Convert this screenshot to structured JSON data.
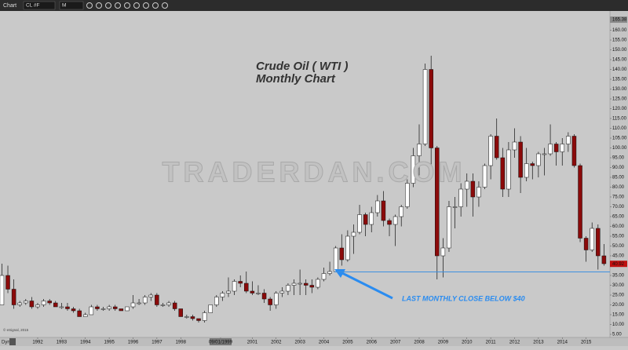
{
  "chart_data": {
    "type": "candlestick",
    "window_title": "Chart",
    "symbol": "CL #F",
    "interval": "M",
    "title": "Crude Oil ( WTI )",
    "subtitle": "Monthly Chart",
    "watermark": "TRADERDAN.COM",
    "annotation": "LAST MONTHLY CLOSE BELOW $40",
    "copyright": "© eSignal, 2015",
    "corner_label": "Dyn",
    "reference_line": 36.8,
    "reference_color": "#3d8fe0",
    "up_color": "#ffffff",
    "down_color": "#8b0a0a",
    "price_tags": [
      165.38,
      40.92
    ],
    "xlim": [
      1990.42,
      2016.0
    ],
    "ylim": [
      3.4,
      169.8
    ],
    "x": [
      1990.5,
      1990.75,
      1991,
      1991.25,
      1991.5,
      1991.75,
      1992,
      1992.25,
      1992.5,
      1992.75,
      1993,
      1993.25,
      1993.5,
      1993.75,
      1994,
      1994.25,
      1994.5,
      1994.75,
      1995,
      1995.25,
      1995.5,
      1995.75,
      1996,
      1996.25,
      1996.5,
      1996.75,
      1997,
      1997.25,
      1997.5,
      1997.75,
      1998,
      1998.25,
      1998.5,
      1998.75,
      1999,
      1999.25,
      1999.5,
      1999.75,
      2000,
      2000.25,
      2000.5,
      2000.75,
      2001,
      2001.25,
      2001.5,
      2001.75,
      2002,
      2002.25,
      2002.5,
      2002.75,
      2003,
      2003.25,
      2003.5,
      2003.75,
      2004,
      2004.25,
      2004.5,
      2004.75,
      2005,
      2005.25,
      2005.5,
      2005.75,
      2006,
      2006.25,
      2006.5,
      2006.75,
      2007,
      2007.25,
      2007.5,
      2007.75,
      2008,
      2008.25,
      2008.5,
      2008.75,
      2009,
      2009.25,
      2009.5,
      2009.75,
      2010,
      2010.25,
      2010.5,
      2010.75,
      2011,
      2011.25,
      2011.5,
      2011.75,
      2012,
      2012.25,
      2012.5,
      2012.75,
      2013,
      2013.25,
      2013.5,
      2013.75,
      2014,
      2014.25,
      2014.5,
      2014.75,
      2015,
      2015.25,
      2015.5,
      2015.75
    ],
    "open": [
      20,
      35,
      28,
      20,
      21,
      22,
      19,
      20,
      22,
      21,
      19,
      19,
      18,
      17,
      14,
      15,
      19,
      18,
      18,
      19,
      18,
      17,
      19,
      21,
      21,
      24,
      25,
      20,
      20,
      21,
      18,
      14,
      14,
      13,
      12,
      16,
      20,
      24,
      26,
      27,
      32,
      31,
      27,
      26,
      26,
      23,
      20,
      26,
      27,
      30,
      31,
      31,
      30,
      29,
      33,
      36,
      37,
      49,
      43,
      55,
      57,
      66,
      61,
      67,
      73,
      63,
      61,
      65,
      70,
      82,
      96,
      102,
      140,
      100,
      45,
      49,
      70,
      70,
      79,
      83,
      75,
      80,
      91,
      106,
      95,
      79,
      99,
      103,
      85,
      92,
      91,
      97,
      97,
      102,
      98,
      102,
      106,
      91,
      54,
      48,
      59,
      45
    ],
    "high": [
      41,
      40,
      33,
      22,
      23,
      24,
      21,
      23,
      23,
      22,
      21,
      21,
      19,
      18,
      16,
      20,
      20,
      19,
      20,
      20,
      18,
      19,
      25,
      23,
      25,
      26,
      26,
      21,
      22,
      22,
      18,
      15,
      15,
      13,
      17,
      20,
      25,
      27,
      34,
      33,
      35,
      37,
      32,
      30,
      28,
      24,
      27,
      29,
      31,
      33,
      38,
      33,
      33,
      34,
      39,
      42,
      50,
      56,
      58,
      61,
      71,
      67,
      70,
      76,
      78,
      64,
      66,
      71,
      84,
      100,
      112,
      143,
      147,
      101,
      54,
      73,
      75,
      82,
      87,
      87,
      83,
      92,
      107,
      115,
      100,
      103,
      110,
      106,
      100,
      93,
      98,
      100,
      112,
      103,
      105,
      108,
      107,
      92,
      55,
      62,
      61,
      51
    ],
    "low": [
      20,
      26,
      18,
      19,
      20,
      18,
      18,
      19,
      20,
      19,
      18,
      17,
      16,
      14,
      14,
      15,
      17,
      17,
      17,
      17,
      17,
      17,
      18,
      20,
      20,
      22,
      19,
      19,
      19,
      17,
      14,
      13,
      12,
      11,
      11,
      16,
      19,
      22,
      24,
      25,
      29,
      26,
      25,
      25,
      21,
      17,
      18,
      24,
      25,
      25,
      25,
      25,
      26,
      28,
      32,
      35,
      37,
      40,
      42,
      46,
      56,
      55,
      57,
      65,
      60,
      55,
      50,
      60,
      69,
      80,
      86,
      101,
      90,
      33,
      34,
      47,
      59,
      65,
      70,
      65,
      70,
      79,
      84,
      94,
      75,
      75,
      95,
      77,
      83,
      84,
      85,
      86,
      96,
      91,
      91,
      98,
      90,
      52,
      42,
      47,
      38,
      40
    ],
    "close": [
      35,
      28,
      20,
      21,
      22,
      19,
      20,
      22,
      21,
      19,
      19,
      18,
      17,
      14,
      15,
      19,
      18,
      18,
      19,
      18,
      17,
      19,
      21,
      21,
      24,
      25,
      20,
      20,
      21,
      18,
      14,
      14,
      13,
      12,
      16,
      20,
      24,
      26,
      27,
      32,
      31,
      27,
      26,
      26,
      23,
      20,
      26,
      27,
      30,
      31,
      31,
      30,
      29,
      33,
      36,
      37,
      49,
      43,
      55,
      57,
      66,
      61,
      67,
      73,
      63,
      61,
      65,
      70,
      82,
      96,
      102,
      140,
      100,
      45,
      49,
      70,
      70,
      79,
      83,
      75,
      80,
      91,
      106,
      95,
      79,
      99,
      103,
      85,
      92,
      91,
      97,
      97,
      102,
      98,
      102,
      106,
      91,
      54,
      48,
      59,
      45,
      41
    ],
    "xticks": [
      1992,
      1993,
      1994,
      1995,
      1996,
      1997,
      1998,
      {
        "value": 1999.67,
        "label": "09/01/1999"
      },
      2001,
      2002,
      2003,
      2004,
      2005,
      2006,
      2007,
      2008,
      2009,
      2010,
      2011,
      2012,
      2013,
      2014,
      2015
    ],
    "yticks": [
      {
        "value": 5,
        "label": "5.00"
      },
      {
        "value": 10,
        "label": "10.00"
      },
      {
        "value": 15,
        "label": "15.00"
      },
      {
        "value": 20,
        "label": "20.00"
      },
      {
        "value": 25,
        "label": "25.00"
      },
      {
        "value": 30,
        "label": "30.00"
      },
      {
        "value": 35,
        "label": "35.00"
      },
      {
        "value": 40,
        "label": "40.00"
      },
      {
        "value": 45,
        "label": "45.00"
      },
      {
        "value": 50,
        "label": "50.00"
      },
      {
        "value": 55,
        "label": "55.00"
      },
      {
        "value": 60,
        "label": "60.00"
      },
      {
        "value": 65,
        "label": "65.00"
      },
      {
        "value": 70,
        "label": "70.00"
      },
      {
        "value": 75,
        "label": "75.00"
      },
      {
        "value": 80,
        "label": "80.00"
      },
      {
        "value": 85,
        "label": "85.00"
      },
      {
        "value": 90,
        "label": "90.00"
      },
      {
        "value": 95,
        "label": "95.00"
      },
      {
        "value": 100,
        "label": "100.00"
      },
      {
        "value": 105,
        "label": "105.00"
      },
      {
        "value": 110,
        "label": "110.00"
      },
      {
        "value": 115,
        "label": "115.00"
      },
      {
        "value": 120,
        "label": "120.00"
      },
      {
        "value": 125,
        "label": "125.00"
      },
      {
        "value": 130,
        "label": "130.00"
      },
      {
        "value": 135,
        "label": "135.00"
      },
      {
        "value": 140,
        "label": "140.00"
      },
      {
        "value": 145,
        "label": "145.00"
      },
      {
        "value": 150,
        "label": "150.00"
      },
      {
        "value": 155,
        "label": "155.00"
      },
      {
        "value": 160,
        "label": "160.00"
      }
    ]
  }
}
